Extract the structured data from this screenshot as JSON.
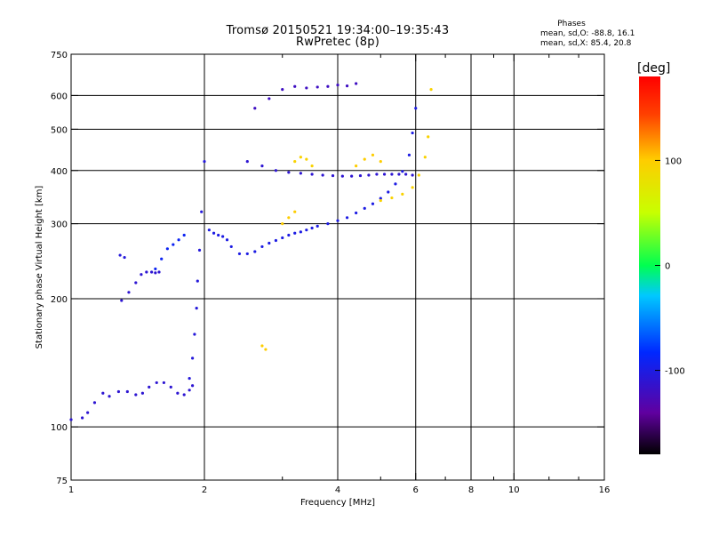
{
  "header": {
    "title_line1": "Tromsø 20150521 19:34:00–19:35:43",
    "title_line2": "RwPretec (8p)",
    "phases_heading": "Phases",
    "phases_o": "mean, sd,O: -88.8, 16.1",
    "phases_x": "mean, sd,X:  85.4, 20.8"
  },
  "colorbar": {
    "unit_label": "[deg]",
    "min": -180,
    "max": 180,
    "ticks": [
      100,
      0,
      -100
    ],
    "tick_labels": [
      "100",
      "0",
      "-100"
    ]
  },
  "chart_data": {
    "type": "scatter",
    "title": "Tromsø 20150521 19:34:00–19:35:43",
    "subtitle": "RwPretec (8p)",
    "xlabel": "Frequency [MHz]",
    "ylabel": "Stationary phase Virtual Height [km]",
    "x_scale": "log",
    "y_scale": "log",
    "xlim": [
      1,
      16
    ],
    "ylim": [
      75,
      750
    ],
    "x_ticks": [
      1,
      2,
      4,
      6,
      8,
      10,
      16
    ],
    "x_tick_labels": [
      "1",
      "2",
      "4",
      "6",
      "8",
      "10",
      "16"
    ],
    "x_minor_ticks": [
      3,
      5,
      7,
      9,
      12,
      14
    ],
    "y_ticks": [
      75,
      100,
      200,
      300,
      400,
      500,
      600,
      750
    ],
    "y_tick_labels": [
      "75",
      "100",
      "200",
      "300",
      "400",
      "500",
      "600",
      "750"
    ],
    "x_gridlines": [
      2,
      4,
      6,
      8,
      10
    ],
    "y_gridlines": [
      100,
      200,
      300,
      400,
      500,
      600
    ],
    "grid": true,
    "color_encoding": "phase (deg)",
    "series": [
      {
        "mode": "o",
        "traces": [
          {
            "x": [
              1.0,
              1.06,
              1.09,
              1.13,
              1.18,
              1.22,
              1.28,
              1.34,
              1.4,
              1.45,
              1.5,
              1.56,
              1.62,
              1.68,
              1.74,
              1.8,
              1.85,
              1.88
            ],
            "y": [
              104,
              105,
              108,
              114,
              120,
              118,
              121,
              121,
              119,
              120,
              124,
              127,
              127,
              124,
              120,
              119,
              122,
              125
            ],
            "phase": -110
          },
          {
            "x": [
              1.3,
              1.35,
              1.4,
              1.44,
              1.48,
              1.52,
              1.55,
              1.58
            ],
            "y": [
              198,
              207,
              218,
              228,
              231,
              231,
              230,
              231
            ],
            "phase": -110
          },
          {
            "x": [
              1.29,
              1.32
            ],
            "y": [
              253,
              250
            ],
            "phase": -105
          },
          {
            "x": [
              1.55,
              1.6,
              1.65,
              1.7,
              1.75,
              1.8
            ],
            "y": [
              235,
              248,
              262,
              268,
              275,
              282
            ],
            "phase": -90
          },
          {
            "x": [
              1.85,
              1.88,
              1.9,
              1.92,
              1.93,
              1.95,
              1.97,
              2.0
            ],
            "y": [
              130,
              145,
              165,
              190,
              220,
              260,
              320,
              420
            ],
            "phase": -105
          },
          {
            "x": [
              2.05,
              2.1,
              2.15,
              2.2,
              2.25,
              2.3,
              2.4,
              2.5,
              2.6,
              2.7,
              2.8,
              2.9,
              3.0,
              3.1,
              3.2,
              3.3,
              3.4,
              3.5,
              3.6,
              3.8,
              4.0,
              4.2,
              4.4,
              4.6,
              4.8,
              5.0,
              5.2,
              5.4,
              5.6,
              5.8,
              5.9,
              6.0
            ],
            "y": [
              290,
              285,
              282,
              280,
              275,
              265,
              255,
              255,
              258,
              265,
              270,
              274,
              278,
              282,
              285,
              287,
              290,
              293,
              296,
              300,
              305,
              310,
              318,
              326,
              334,
              344,
              356,
              372,
              398,
              435,
              490,
              560
            ],
            "phase": -100
          },
          {
            "x": [
              2.6,
              2.8,
              3.0,
              3.2,
              3.4,
              3.6,
              3.8,
              4.0,
              4.2,
              4.4
            ],
            "y": [
              560,
              590,
              620,
              630,
              625,
              628,
              630,
              635,
              632,
              640
            ],
            "phase": -120
          },
          {
            "x": [
              2.5,
              2.7,
              2.9,
              3.1,
              3.3,
              3.5,
              3.7,
              3.9,
              4.1,
              4.3,
              4.5,
              4.7,
              4.9,
              5.1,
              5.3,
              5.5,
              5.7,
              5.9
            ],
            "y": [
              420,
              410,
              400,
              396,
              394,
              392,
              390,
              389,
              388,
              388,
              389,
              390,
              392,
              392,
              392,
              392,
              392,
              390
            ],
            "phase": -110
          }
        ]
      },
      {
        "mode": "x",
        "traces": [
          {
            "x": [
              3.2,
              3.3,
              3.4,
              3.5
            ],
            "y": [
              420,
              430,
              425,
              410
            ],
            "phase": 95
          },
          {
            "x": [
              4.4,
              4.6,
              4.8,
              5.0
            ],
            "y": [
              410,
              425,
              435,
              420
            ],
            "phase": 100
          },
          {
            "x": [
              3.0,
              3.1,
              3.2
            ],
            "y": [
              300,
              310,
              320
            ],
            "phase": 100
          },
          {
            "x": [
              5.0,
              5.3,
              5.6,
              5.9,
              6.1,
              6.3,
              6.4,
              6.5
            ],
            "y": [
              340,
              345,
              352,
              365,
              390,
              430,
              480,
              620
            ],
            "phase": 95
          },
          {
            "x": [
              2.7,
              2.75
            ],
            "y": [
              155,
              152
            ],
            "phase": 100
          }
        ]
      }
    ]
  }
}
